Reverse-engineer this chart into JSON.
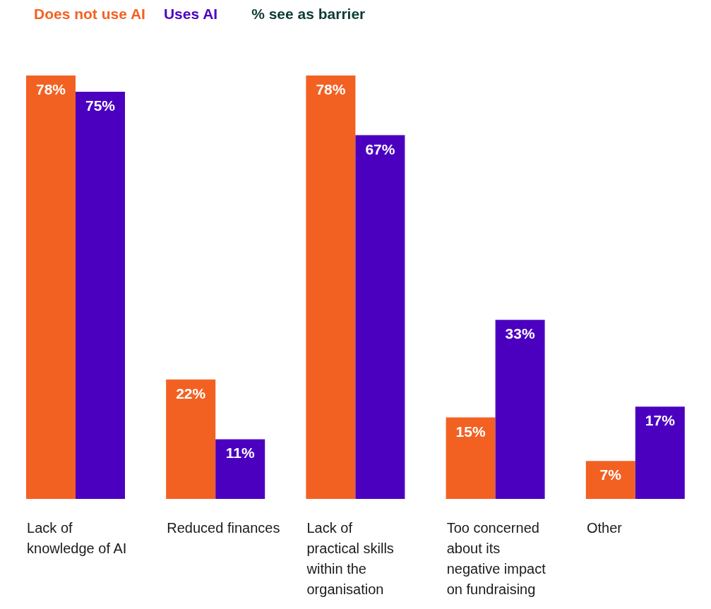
{
  "chart_data": {
    "type": "bar",
    "title": "% see as barrier",
    "categories": [
      "Lack of knowledge of AI",
      "Reduced finances",
      "Lack of practical skills within the organisation",
      "Too concerned about its negative impact on fundraising",
      "Other"
    ],
    "series": [
      {
        "name": "Does not use AI",
        "color": "#f26122",
        "values": [
          78,
          22,
          78,
          15,
          7
        ],
        "value_labels": [
          "78%",
          "22%",
          "78%",
          "15%",
          "7%"
        ]
      },
      {
        "name": "Uses AI",
        "color": "#4b00c0",
        "values": [
          75,
          11,
          67,
          33,
          17
        ],
        "value_labels": [
          "75%",
          "11%",
          "67%",
          "33%",
          "17%"
        ]
      }
    ],
    "legend": "top left",
    "grid": false
  }
}
